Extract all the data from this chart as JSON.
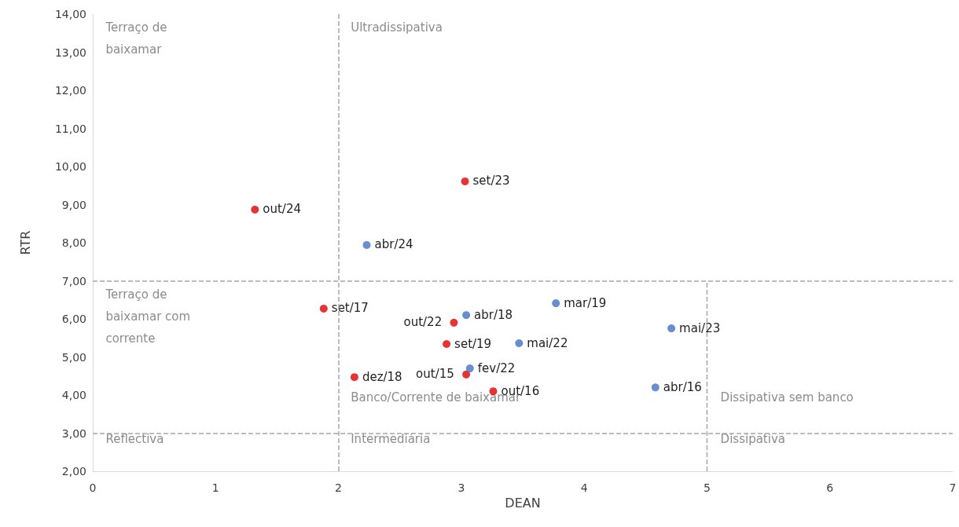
{
  "chart_data": {
    "type": "scatter",
    "xlabel": "DEAN",
    "ylabel": "RTR",
    "xlim": [
      0,
      7
    ],
    "xticks": [
      0,
      1,
      2,
      3,
      4,
      5,
      6,
      7
    ],
    "ylim": [
      2,
      14
    ],
    "yticks": [
      {
        "value": 2,
        "label": "2,00"
      },
      {
        "value": 3,
        "label": "3,00"
      },
      {
        "value": 4,
        "label": "4,00"
      },
      {
        "value": 5,
        "label": "5,00"
      },
      {
        "value": 6,
        "label": "6,00"
      },
      {
        "value": 7,
        "label": "7,00"
      },
      {
        "value": 8,
        "label": "8,00"
      },
      {
        "value": 9,
        "label": "9,00"
      },
      {
        "value": 10,
        "label": "10,00"
      },
      {
        "value": 11,
        "label": "11,00"
      },
      {
        "value": 12,
        "label": "12,00"
      },
      {
        "value": 13,
        "label": "13,00"
      },
      {
        "value": 14,
        "label": "14,00"
      }
    ],
    "grid": false,
    "marker": "circle",
    "series": [
      {
        "color": "#e00000",
        "x": [
          1.32,
          3.03,
          1.88,
          2.94,
          2.88,
          3.04,
          3.26,
          2.13
        ],
        "values": [
          8.87,
          9.61,
          6.27,
          5.9,
          5.34,
          4.54,
          4.1,
          4.47
        ]
      },
      {
        "color": "#4472c4",
        "x": [
          2.23,
          3.04,
          3.07,
          3.47,
          3.77,
          4.71,
          4.58
        ],
        "values": [
          7.94,
          6.1,
          4.7,
          5.36,
          6.41,
          5.75,
          4.2
        ]
      },
      {
        "type": "line",
        "color": "#a6a6a6",
        "line_style": "dashed",
        "marker": "none",
        "x": [
          5,
          5
        ],
        "values": [
          2,
          7
        ]
      }
    ],
    "ref_lines": [
      {
        "axis": "x",
        "value": 2,
        "color": "#a6a6a6",
        "line_style": "dashed"
      },
      {
        "axis": "y",
        "value": 3,
        "color": "#a6a6a6",
        "line_style": "dashed"
      },
      {
        "axis": "y",
        "value": 7,
        "color": "#a6a6a6",
        "line_style": "dashed"
      }
    ],
    "annotations": [
      "Terraço de\nbaixamar",
      "Ultradissipativa",
      "Terraço de\nbaixamar com\ncorrente",
      "Banco/Corrente de baixamar",
      "Dissipativa sem banco",
      "Reflectiva",
      "Intermediária",
      "Dissipativa",
      {
        "text": "out/24",
        "x": 1.32,
        "y": 8.87
      },
      {
        "text": "set/23",
        "x": 3.03,
        "y": 9.61
      },
      {
        "text": "set/17",
        "x": 1.88,
        "y": 6.27
      },
      {
        "text": "out/22",
        "x": 2.94,
        "y": 5.9
      },
      {
        "text": "set/19",
        "x": 2.88,
        "y": 5.34
      },
      {
        "text": "out/15",
        "x": 3.04,
        "y": 4.54
      },
      {
        "text": "out/16",
        "x": 3.26,
        "y": 4.1
      },
      {
        "text": "dez/18",
        "x": 2.13,
        "y": 4.47
      },
      {
        "text": "abr/24",
        "x": 2.23,
        "y": 7.94
      },
      {
        "text": "abr/18",
        "x": 3.04,
        "y": 6.1
      },
      {
        "text": "fev/22",
        "x": 3.07,
        "y": 4.7
      },
      {
        "text": "mai/22",
        "x": 3.47,
        "y": 5.36
      },
      {
        "text": "mar/19",
        "x": 3.77,
        "y": 6.41
      },
      {
        "text": "mai/23",
        "x": 4.71,
        "y": 5.75
      },
      {
        "text": "abr/16",
        "x": 4.58,
        "y": 4.2
      }
    ]
  }
}
